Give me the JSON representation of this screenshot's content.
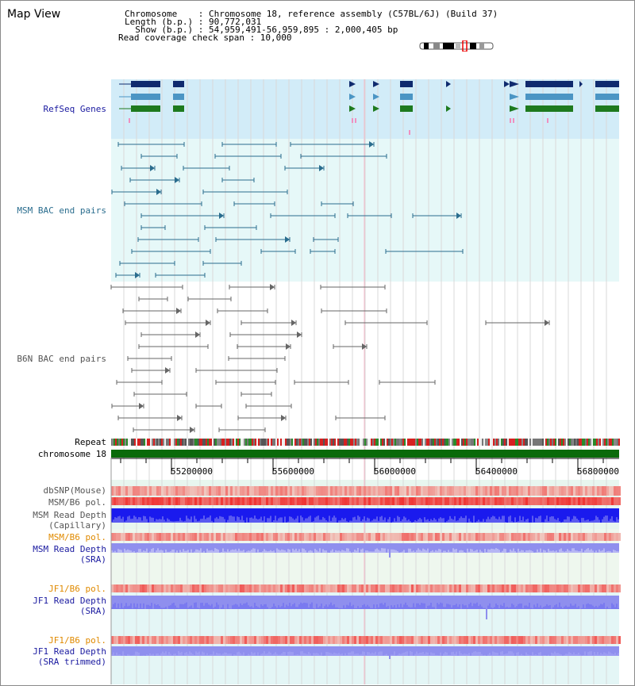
{
  "map_view_title": "Map View",
  "header": {
    "line1": "Chromosome    : Chromosome 18, reference assembly (C57BL/6J) (Build 37)",
    "line2": "Length (b.p.) : 90,772,031",
    "line3": "  Show (b.p.) : 54,959,491-56,959,895 : 2,000,405 bp",
    "line4": "Read coverage check span : 10,000"
  },
  "tracks": {
    "refseq": "RefSeq Genes",
    "msm_bac": "MSM BAC end pairs",
    "b6n_bac": "B6N BAC end pairs",
    "repeat": "Repeat",
    "chromosome": "chromosome 18",
    "dbsnp": "dbSNP(Mouse)",
    "msm_b6_pol": "MSM/B6 pol.",
    "msm_depth_cap_1": "MSM Read Depth",
    "msm_depth_cap_2": "(Capillary)",
    "msm_b6_pol2": "MSM/B6 pol.",
    "msm_depth_sra_1": "MSM Read Depth",
    "msm_depth_sra_2": "(SRA)",
    "jf1_b6_pol": "JF1/B6 pol.",
    "jf1_depth_sra_1": "JF1 Read Depth",
    "jf1_depth_sra_2": "(SRA)",
    "jf1_b6_pol2": "JF1/B6 pol.",
    "jf1_depth_trim_1": "JF1 Read Depth",
    "jf1_depth_trim_2": "(SRA trimmed)"
  },
  "axis_ticks": [
    "55200000",
    "55600000",
    "56000000",
    "56400000",
    "56800000"
  ],
  "colors": {
    "refseq_bg": "#d2ecf8",
    "bac_bg": "#e6f8f8",
    "navy": "#0f2a6e",
    "steel": "#4b95c4",
    "green": "#1e7a1e",
    "teal_line": "#2a6d8e",
    "gray_line": "#666666",
    "chromosome_green": "#0a6a0a",
    "label_navy": "#1a1aa0",
    "label_teal": "#2a6d8e",
    "label_gray": "#555555",
    "label_orange": "#e08a00",
    "depth_blue": "#1a1aee",
    "depth_light": "#8f8fee"
  }
}
